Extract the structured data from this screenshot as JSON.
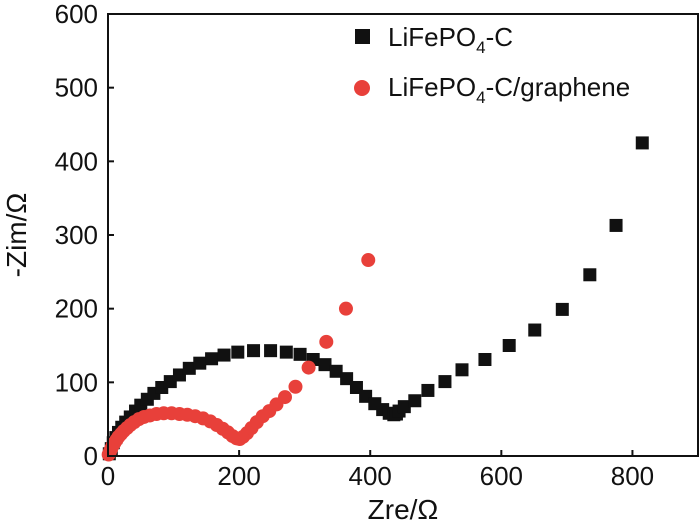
{
  "chart_data": {
    "type": "scatter",
    "title": "",
    "xlabel": "Zre/Ω",
    "ylabel": "-Zim/Ω",
    "xlim": [
      0,
      900
    ],
    "ylim": [
      0,
      600
    ],
    "xticks": [
      0,
      200,
      400,
      600,
      800
    ],
    "yticks": [
      0,
      100,
      200,
      300,
      400,
      500,
      600
    ],
    "xtick_labels": [
      "0",
      "200",
      "400",
      "600",
      "800"
    ],
    "ytick_labels": [
      "0",
      "100",
      "200",
      "300",
      "400",
      "500",
      "600"
    ],
    "grid": false,
    "legend_position": "top-right",
    "series": [
      {
        "name": "LiFePO4-C",
        "legend": {
          "prefix": "LiFePO",
          "sub": "4",
          "suffix": "-C"
        },
        "marker": "square",
        "color": "#111111",
        "points": [
          [
            2,
            3
          ],
          [
            5,
            10
          ],
          [
            8,
            18
          ],
          [
            12,
            25
          ],
          [
            16,
            32
          ],
          [
            21,
            39
          ],
          [
            27,
            46
          ],
          [
            34,
            53
          ],
          [
            42,
            61
          ],
          [
            50,
            69
          ],
          [
            60,
            77
          ],
          [
            70,
            85
          ],
          [
            82,
            93
          ],
          [
            95,
            101
          ],
          [
            109,
            110
          ],
          [
            124,
            119
          ],
          [
            140,
            126
          ],
          [
            158,
            132
          ],
          [
            177,
            137
          ],
          [
            198,
            141
          ],
          [
            222,
            143
          ],
          [
            248,
            143
          ],
          [
            272,
            141
          ],
          [
            293,
            138
          ],
          [
            313,
            131
          ],
          [
            331,
            124
          ],
          [
            348,
            115
          ],
          [
            364,
            105
          ],
          [
            379,
            93
          ],
          [
            393,
            81
          ],
          [
            407,
            71
          ],
          [
            419,
            63
          ],
          [
            429,
            58
          ],
          [
            436,
            56
          ],
          [
            440,
            57
          ],
          [
            444,
            61
          ],
          [
            452,
            67
          ],
          [
            468,
            75
          ],
          [
            488,
            89
          ],
          [
            514,
            101
          ],
          [
            540,
            117
          ],
          [
            575,
            131
          ],
          [
            612,
            150
          ],
          [
            651,
            171
          ],
          [
            693,
            199
          ],
          [
            735,
            246
          ],
          [
            775,
            313
          ],
          [
            815,
            425
          ]
        ]
      },
      {
        "name": "LiFePO4-C/graphene",
        "legend": {
          "prefix": "LiFePO",
          "sub": "4",
          "suffix": "-C/graphene"
        },
        "marker": "circle",
        "color": "#e8403a",
        "points": [
          [
            1,
            2
          ],
          [
            3,
            6
          ],
          [
            5,
            10
          ],
          [
            7,
            14
          ],
          [
            10,
            18
          ],
          [
            13,
            22
          ],
          [
            16,
            26
          ],
          [
            20,
            30
          ],
          [
            24,
            34
          ],
          [
            29,
            38
          ],
          [
            34,
            42
          ],
          [
            40,
            46
          ],
          [
            47,
            50
          ],
          [
            55,
            53
          ],
          [
            64,
            55
          ],
          [
            74,
            57
          ],
          [
            85,
            58
          ],
          [
            97,
            58
          ],
          [
            109,
            57
          ],
          [
            121,
            56
          ],
          [
            133,
            54
          ],
          [
            145,
            51
          ],
          [
            156,
            47
          ],
          [
            166,
            42
          ],
          [
            175,
            37
          ],
          [
            183,
            32
          ],
          [
            190,
            27
          ],
          [
            196,
            24
          ],
          [
            201,
            23
          ],
          [
            206,
            26
          ],
          [
            212,
            31
          ],
          [
            219,
            38
          ],
          [
            227,
            46
          ],
          [
            236,
            54
          ],
          [
            246,
            61
          ],
          [
            257,
            70
          ],
          [
            270,
            80
          ],
          [
            286,
            94
          ],
          [
            306,
            120
          ],
          [
            333,
            155
          ],
          [
            363,
            200
          ],
          [
            397,
            266
          ]
        ]
      }
    ]
  }
}
